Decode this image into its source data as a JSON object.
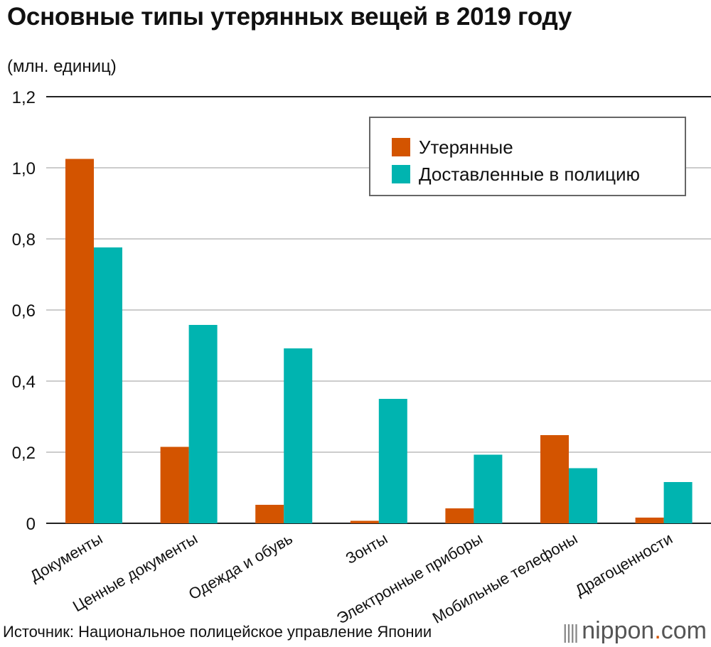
{
  "title": "Основные типы утерянных вещей в 2019 году",
  "unit_label": "(млн. единиц)",
  "source": "Источник: Национальное полицейское управление Японии",
  "brand": {
    "dots": "||||",
    "name_a": "nippon",
    "name_dot": ".",
    "name_b": "com"
  },
  "colors": {
    "lost": "#d35400",
    "delivered": "#00b4b0",
    "grid": "#cccccc",
    "axis": "#222222"
  },
  "legend": [
    {
      "label": "Утерянные",
      "color": "#d35400"
    },
    {
      "label": "Доставленные в полицию",
      "color": "#00b4b0"
    }
  ],
  "chart_data": {
    "type": "bar",
    "title": "Основные типы утерянных вещей в 2019 году",
    "ylabel": "(млн. единиц)",
    "xlabel": "",
    "ylim": [
      0,
      1.2
    ],
    "yticks": [
      "0",
      "0,2",
      "0,4",
      "0,6",
      "0,8",
      "1,0",
      "1,2"
    ],
    "grid": true,
    "legend_position": "top-right",
    "categories": [
      "Документы",
      "Ценные документы",
      "Одежда и обувь",
      "Зонты",
      "Электронные приборы",
      "Мобильные телефоны",
      "Драгоценности"
    ],
    "series": [
      {
        "name": "Утерянные",
        "values": [
          1.025,
          0.215,
          0.052,
          0.007,
          0.042,
          0.248,
          0.016
        ]
      },
      {
        "name": "Доставленные в полицию",
        "values": [
          0.776,
          0.558,
          0.492,
          0.35,
          0.193,
          0.155,
          0.116
        ]
      }
    ]
  }
}
